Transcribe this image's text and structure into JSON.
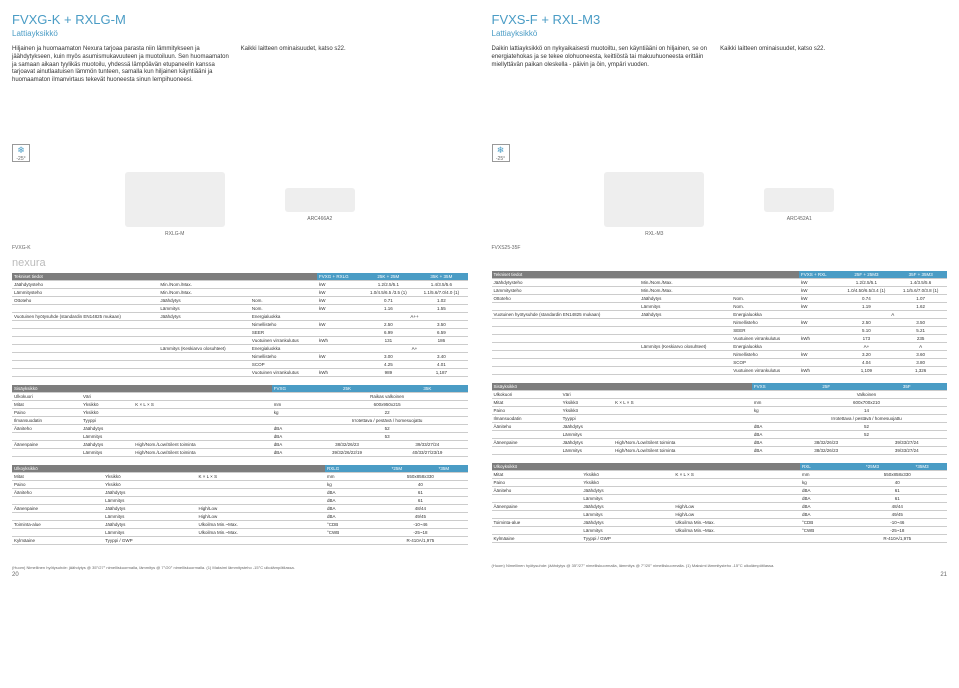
{
  "left": {
    "title": "FVXG-K + RXLG-M",
    "subtitle": "Lattiayksikkö",
    "intro1": "Hiljainen ja huomaamaton Nexura tarjoaa parasta niin lämmitykseen ja jäähdytykseen, kuin myös asumismukavuuteen ja muotoiluun. Sen huomaamaton ja samaan aikaan tyylikäs muotoilu, yhdessä lämpöävän etupaneelin kanssa tarjoavat ainutlaatuisen lämmön tunteen, samalla kun hiljainen käyntiääni ja huomaamaton ilmanvirtaus tekevät huoneesta sinun lempihuoneesi.",
    "intro2": "Kaikki laitteen ominaisuudet, katso s22.",
    "temp": "-25°",
    "img1_label": "RXLG-M",
    "img2_label": "ARC466A2",
    "pagenum": "20"
  },
  "right": {
    "title": "FVXS-F + RXL-M3",
    "subtitle": "Lattiayksikkö",
    "intro1": "Daikin lattiayksikkö on nykyaikaisesti muotoiltu, sen käyntiääni on hiljainen, se on energiatehokas ja se tekee olohuoneesta, keittiöstä tai makuuhuoneesta erittäin miellyttävän paikan oleskella - päivin ja öin, ympäri vuoden.",
    "intro2": "Kaikki laitteen ominaisuudet, katso s22.",
    "temp": "-25°",
    "img1_label": "RXL-M3",
    "img2_label": "ARC452A1",
    "pagenum": "21"
  },
  "brand": "nexura",
  "unit_label": "FVXG-K",
  "unit_label_r": "FVXS25-35F",
  "tables": {
    "left_tech": {
      "header": [
        "Tekniset tiedot",
        "",
        "",
        "FVXG + RXLG",
        "25K + 25M",
        "35K + 35M"
      ],
      "rows": [
        [
          "Jäähdytysteho",
          "Min./Nom./Max.",
          "",
          "kW",
          "1.2/2.5/5.1",
          "1.4/3.5/5.6"
        ],
        [
          "Lämmitysteho",
          "Min./Nom./Max.",
          "",
          "kW",
          "1.0/4.5/6.5 /3.5 (1)",
          "1.1/5.6/7.0/4.0 (1)"
        ],
        [
          "Ottoteho",
          "Jäähdytys",
          "Nom.",
          "kW",
          "0.71",
          "1.02"
        ],
        [
          "",
          "Lämmitys",
          "Nom.",
          "kW",
          "1.16",
          "1.55"
        ],
        [
          "Vuotuinen hyötysuhde (standardin EN14825 mukaan)",
          "Jäähdytys",
          "Energialuokka",
          "",
          "A++",
          ""
        ],
        [
          "",
          "",
          "Nimellisteho",
          "kW",
          "2.50",
          "3.50"
        ],
        [
          "",
          "",
          "SEER",
          "",
          "6.99",
          "6.59"
        ],
        [
          "",
          "",
          "Vuotuinen virrankulutus",
          "kWh",
          "131",
          "186"
        ],
        [
          "",
          "Lämmitys (Keskiarvo olosuhteet)",
          "Energialuokka",
          "",
          "A+",
          ""
        ],
        [
          "",
          "",
          "Nimellisteho",
          "kW",
          "3.00",
          "3.40"
        ],
        [
          "",
          "",
          "SCOP",
          "",
          "4.25",
          "4.01"
        ],
        [
          "",
          "",
          "Vuotuinen virrankulutus",
          "kWh",
          "989",
          "1,187"
        ]
      ]
    },
    "left_indoor": {
      "header": [
        "Sisäyksikkö",
        "",
        "",
        "FVXG",
        "25K",
        "35K"
      ],
      "rows": [
        [
          "Ulkokuori",
          "Väri",
          "",
          "",
          "Raikas valkoinen",
          ""
        ],
        [
          "Mitat",
          "Yksikkö",
          "K × L × S",
          "mm",
          "600x950x215",
          ""
        ],
        [
          "Paino",
          "Yksikkö",
          "",
          "kg",
          "22",
          ""
        ],
        [
          "Ilmansuodatin",
          "Tyyppi",
          "",
          "",
          "Irrotettava / pestävä / homesuojattu",
          ""
        ],
        [
          "Ääniteho",
          "Jäähdytys",
          "",
          "dBA",
          "52",
          ""
        ],
        [
          "",
          "Lämmitys",
          "",
          "dBA",
          "53",
          ""
        ],
        [
          "Äänenpaine",
          "Jäähdytys",
          "High/Nom./Low/Silent toiminta",
          "dBA",
          "38/32/26/23",
          "39/33/27/24"
        ],
        [
          "",
          "Lämmitys",
          "High/Nom./Low/Silent toiminta",
          "dBA",
          "39/32/26/22/19",
          "40/33/27/23/19"
        ]
      ]
    },
    "left_outdoor": {
      "header": [
        "Ulkoyksikkö",
        "",
        "",
        "RXLG",
        "*25M",
        "*35M"
      ],
      "rows": [
        [
          "Mitat",
          "Yksikkö",
          "K × L × S",
          "mm",
          "550x858x330",
          ""
        ],
        [
          "Paino",
          "Yksikkö",
          "",
          "kg",
          "40",
          ""
        ],
        [
          "Ääniteho",
          "Jäähdytys",
          "",
          "dBA",
          "61",
          ""
        ],
        [
          "",
          "Lämmitys",
          "",
          "dBA",
          "61",
          ""
        ],
        [
          "Äänenpaine",
          "Jäähdytys",
          "High/Low",
          "dBA",
          "48/44",
          ""
        ],
        [
          "",
          "Lämmitys",
          "High/Low",
          "dBA",
          "49/45",
          ""
        ],
        [
          "Toiminta-alue",
          "Jäähdytys",
          "Ulkoilma    Min.~Max.",
          "°CDB",
          "-10~46",
          ""
        ],
        [
          "",
          "Lämmitys",
          "Ulkoilma    Min.~Max.",
          "°CWB",
          "-25~18",
          ""
        ],
        [
          "Kylmäaine",
          "Tyyppi / GWP",
          "",
          "",
          "R-410A/1,975",
          ""
        ]
      ]
    },
    "right_tech": {
      "header": [
        "Tekniset tiedot",
        "",
        "",
        "FVXS + RXL",
        "25F + 25M3",
        "35F + 35M3"
      ],
      "rows": [
        [
          "Jäähdytysteho",
          "Min./Nom./Max.",
          "",
          "kW",
          "1.2/2.5/5.1",
          "1.4/3.5/5.6"
        ],
        [
          "Lämmitysteho",
          "Min./Nom./Max.",
          "",
          "kW",
          "1.0/4.50/6.5/3.4 (1)",
          "1.1/5.6/7.0/3.8 (1)"
        ],
        [
          "Ottoteho",
          "Jäähdytys",
          "Nom.",
          "kW",
          "0.74",
          "1.07"
        ],
        [
          "",
          "Lämmitys",
          "Nom.",
          "kW",
          "1.19",
          "1.62"
        ],
        [
          "Vuotuinen hyötysuhde (standardin EN14825 mukaan)",
          "Jäähdytys",
          "Energialuokka",
          "",
          "A",
          ""
        ],
        [
          "",
          "",
          "Nimellisteho",
          "kW",
          "2.50",
          "3.50"
        ],
        [
          "",
          "",
          "SEER",
          "",
          "5.10",
          "5.21"
        ],
        [
          "",
          "",
          "Vuotuinen virrankulutus",
          "kWh",
          "173",
          "235"
        ],
        [
          "",
          "Lämmitys (Keskiarvo olosuhteet)",
          "Energialuokka",
          "",
          "A+",
          "A"
        ],
        [
          "",
          "",
          "Nimellisteho",
          "kW",
          "3.20",
          "3.60"
        ],
        [
          "",
          "",
          "SCOP",
          "",
          "4.04",
          "3.80"
        ],
        [
          "",
          "",
          "Vuotuinen virrankulutus",
          "kWh",
          "1,109",
          "1,326"
        ]
      ]
    },
    "right_indoor": {
      "header": [
        "Sisäyksikkö",
        "",
        "",
        "FVXS",
        "25F",
        "35F"
      ],
      "rows": [
        [
          "Ulkokuori",
          "Väri",
          "",
          "",
          "Valkoinen",
          ""
        ],
        [
          "Mitat",
          "Yksikkö",
          "K × L × S",
          "mm",
          "600x700x210",
          ""
        ],
        [
          "Paino",
          "Yksikkö",
          "",
          "kg",
          "14",
          ""
        ],
        [
          "Ilmansuodatin",
          "Tyyppi",
          "",
          "",
          "Irrotettava / pestävä / homesuojattu",
          ""
        ],
        [
          "Ääniteho",
          "Jäähdytys",
          "",
          "dBA",
          "52",
          ""
        ],
        [
          "",
          "Lämmitys",
          "",
          "dBA",
          "52",
          ""
        ],
        [
          "Äänenpaine",
          "Jäähdytys",
          "High/Nom./Low/Silent toiminta",
          "dBA",
          "38/32/26/23",
          "39/33/27/24"
        ],
        [
          "",
          "Lämmitys",
          "High/Nom./Low/Silent toiminta",
          "dBA",
          "38/32/26/23",
          "39/33/27/24"
        ]
      ]
    },
    "right_outdoor": {
      "header": [
        "Ulkoyksikkö",
        "",
        "",
        "RXL",
        "*25M3",
        "*35M3"
      ],
      "rows": [
        [
          "Mitat",
          "Yksikkö",
          "K × L × S",
          "mm",
          "550x858x330",
          ""
        ],
        [
          "Paino",
          "Yksikkö",
          "",
          "kg",
          "40",
          ""
        ],
        [
          "Ääniteho",
          "Jäähdytys",
          "",
          "dBA",
          "61",
          ""
        ],
        [
          "",
          "Lämmitys",
          "",
          "dBA",
          "61",
          ""
        ],
        [
          "Äänenpaine",
          "Jäähdytys",
          "High/Low",
          "dBA",
          "48/44",
          ""
        ],
        [
          "",
          "Lämmitys",
          "High/Low",
          "dBA",
          "49/45",
          ""
        ],
        [
          "Toiminta-alue",
          "Jäähdytys",
          "Ulkoilma    Min.~Max.",
          "°CDB",
          "-10~46",
          ""
        ],
        [
          "",
          "Lämmitys",
          "Ulkoilma    Min.~Max.",
          "°CWB",
          "-25~18",
          ""
        ],
        [
          "Kylmäaine",
          "Tyyppi / GWP",
          "",
          "",
          "R-410A/1,975",
          ""
        ]
      ]
    }
  },
  "footnote": "(Huom) Nimellinen hyötysuhde: jäähdytys @ 35°/27° nimelliskuormalla, lämmitys @ 7°/20° nimelliskuormalla. (1) Maksimi lämmitysteho -15°C ulkolämpötilassa."
}
